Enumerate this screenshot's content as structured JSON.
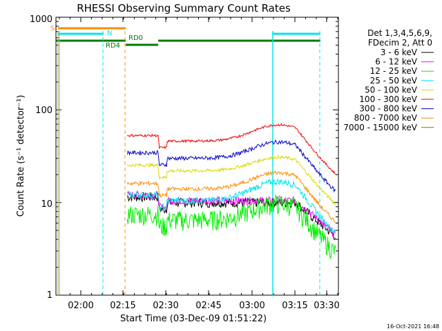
{
  "chart_data": {
    "type": "line",
    "title": "RHESSI Observing Summary Count Rates",
    "xlabel": "Start Time (03-Dec-09 01:51:22)",
    "ylabel": "Count Rate (s⁻¹ detector⁻¹)",
    "yscale": "log",
    "xlim_minutes": [
      0,
      99
    ],
    "ylim": [
      1,
      1000
    ],
    "x_ticks": [
      "02:00",
      "02:15",
      "02:30",
      "02:45",
      "03:00",
      "03:15",
      "03:30"
    ],
    "y_ticks": [
      "1",
      "10",
      "100",
      "1000"
    ],
    "legend_header": [
      "Det 1,3,4,5,6,9,",
      "FDecim 2, Att 0"
    ],
    "legend_placement": "right",
    "grid": false,
    "timestamp": "16-Oct-2021 16:48",
    "flags": [
      {
        "label": "S",
        "color": "#ff8c00"
      },
      {
        "label": "N",
        "color": "#00e5ee"
      },
      {
        "label": "RD0",
        "color": "#007a00"
      },
      {
        "label": "RD4",
        "color": "#007a00"
      }
    ],
    "series": [
      {
        "name": "3 - 6 keV",
        "color": "#000000",
        "base": 10,
        "bump": 1.0,
        "noise": 0.12
      },
      {
        "name": "6 - 12 keV",
        "color": "#ff00ff",
        "base": 10.5,
        "bump": 1.0,
        "noise": 0.1
      },
      {
        "name": "12 - 25 keV",
        "color": "#00ee00",
        "base": 6.5,
        "bump": 1.5,
        "noise": 0.25
      },
      {
        "name": "25 - 50 keV",
        "color": "#00e5ee",
        "base": 10.5,
        "bump": 1.6,
        "noise": 0.08
      },
      {
        "name": "50 - 100 keV",
        "color": "#d8d800",
        "base": 22,
        "bump": 1.4,
        "noise": 0.04
      },
      {
        "name": "100 - 300 keV",
        "color": "#ee0000",
        "base": 46,
        "bump": 1.5,
        "noise": 0.03
      },
      {
        "name": "300 - 800 keV",
        "color": "#0000cc",
        "base": 30,
        "bump": 1.5,
        "noise": 0.05
      },
      {
        "name": "800 - 7000 keV",
        "color": "#ff8c00",
        "base": 14,
        "bump": 1.5,
        "noise": 0.05
      },
      {
        "name": "7000 - 15000 keV",
        "color": "#b35a00",
        "base": 0,
        "bump": 0,
        "noise": 0
      }
    ]
  }
}
